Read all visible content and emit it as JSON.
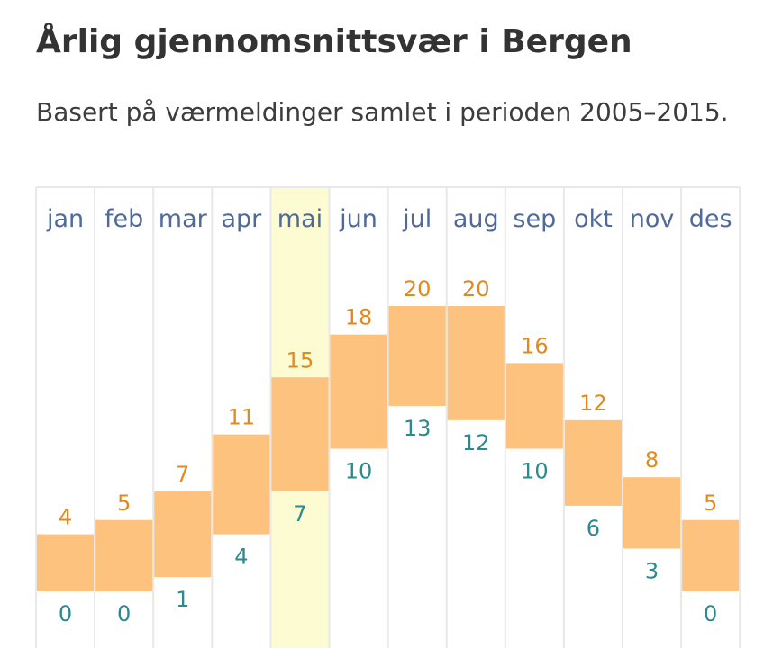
{
  "header": {
    "title": "Årlig gjennomsnittsvær i Bergen",
    "subtitle": "Basert på værmeldinger samlet i perioden 2005–2015."
  },
  "colors": {
    "bar": "#fdc27d",
    "highlight": "#fdfbd2",
    "grid": "#e8e8e8",
    "month": "#4f6a9a",
    "high": "#e08a1e",
    "low": "#2a8a8e"
  },
  "highlighted_month": "mai",
  "chart_data": {
    "type": "bar",
    "subtype": "floating-range",
    "title": "Årlig gjennomsnittsvær i Bergen",
    "categories": [
      "jan",
      "feb",
      "mar",
      "apr",
      "mai",
      "jun",
      "jul",
      "aug",
      "sep",
      "okt",
      "nov",
      "des"
    ],
    "series": [
      {
        "name": "high",
        "values": [
          4,
          5,
          7,
          11,
          15,
          18,
          20,
          20,
          16,
          12,
          8,
          5
        ]
      },
      {
        "name": "low",
        "values": [
          0,
          0,
          1,
          4,
          7,
          10,
          13,
          12,
          10,
          6,
          3,
          0
        ]
      }
    ],
    "high_labels": [
      "4",
      "5",
      "7",
      "11",
      "15",
      "18",
      "20",
      "20",
      "16",
      "12",
      "8",
      "5"
    ],
    "low_labels": [
      "0",
      "0",
      "1",
      "4",
      "7",
      "10",
      "13",
      "12",
      "10",
      "6",
      "3",
      "0"
    ],
    "ylim": [
      0,
      20
    ],
    "xlabel": "",
    "ylabel": ""
  }
}
